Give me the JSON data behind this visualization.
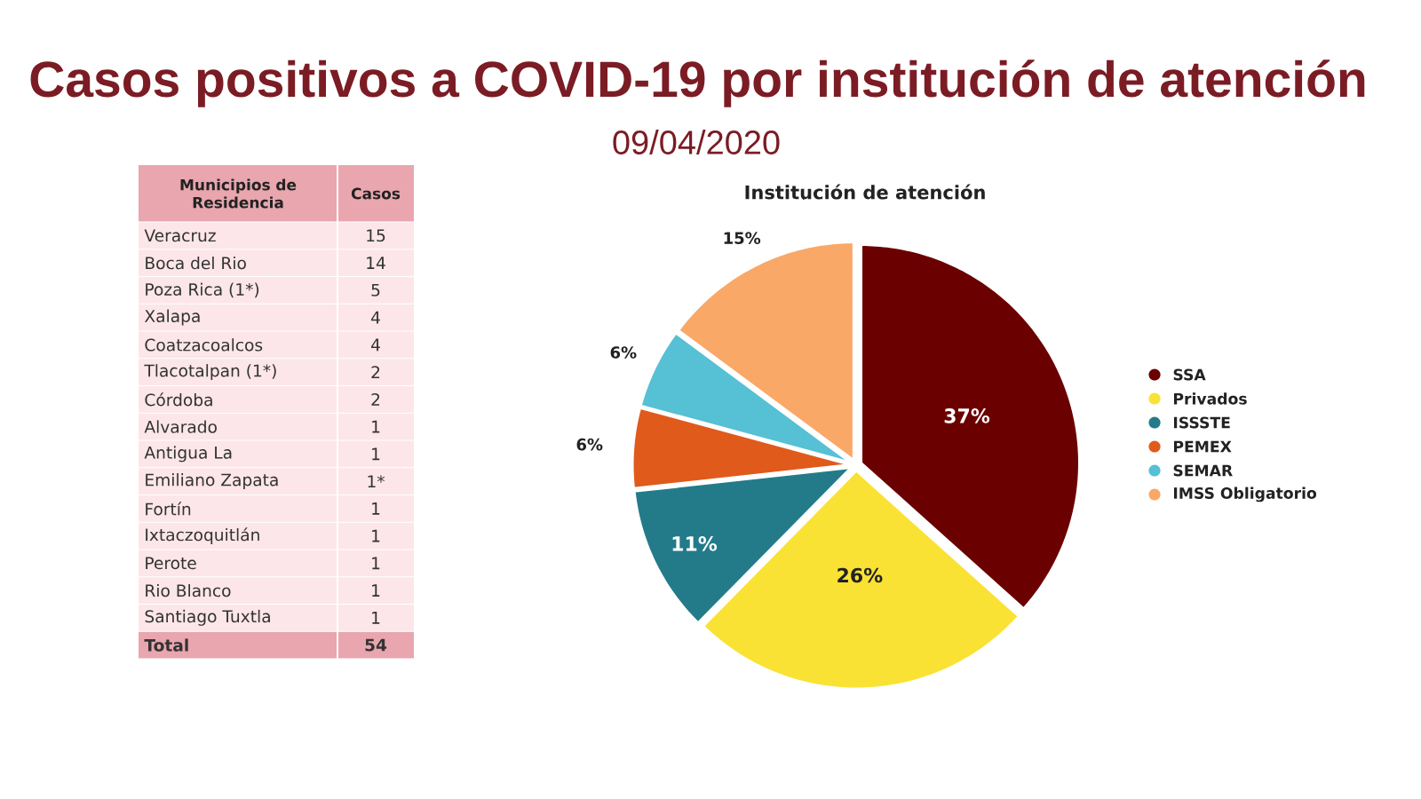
{
  "chart_data": [
    {
      "type": "other",
      "title": "Casos positivos a COVID-19 por institución de atención",
      "subtitle": "09/04/2020"
    },
    {
      "type": "other",
      "xlabel": "Municipios de Residencia",
      "ylabel": "Casos",
      "categories": [
        "Veracruz",
        "Boca del Rio",
        "Poza Rica (1*)",
        "Xalapa",
        "Coatzacoalcos",
        "Tlacotalpan (1*)",
        "Córdoba",
        "Alvarado",
        "Antigua La",
        "Emiliano Zapata",
        "Fortín",
        "Ixtaczoquitlán",
        "Perote",
        "Rio Blanco",
        "Santiago Tuxtla",
        "Total"
      ],
      "values": [
        15,
        14,
        5,
        4,
        4,
        2,
        2,
        1,
        1,
        1,
        1,
        1,
        1,
        1,
        1,
        54
      ],
      "value_labels": [
        "15",
        "14",
        "5",
        "4",
        "4",
        "2",
        "2",
        "1",
        "1",
        "1*",
        "1",
        "1",
        "1",
        "1",
        "1",
        "54"
      ]
    },
    {
      "type": "pie",
      "title": "Institución de atención",
      "categories": [
        "SSA",
        "Privados",
        "ISSSTE",
        "PEMEX",
        "SEMAR",
        "IMSS Obligatorio"
      ],
      "values": [
        37,
        26,
        11,
        6,
        6,
        15
      ],
      "colors": [
        "#6b0000",
        "#f9e234",
        "#237b8a",
        "#e05a1c",
        "#56c0d4",
        "#f9a868"
      ],
      "value_labels": [
        "37%",
        "26%",
        "11%",
        "6%",
        "6%",
        "15%"
      ],
      "legend": "right"
    }
  ]
}
